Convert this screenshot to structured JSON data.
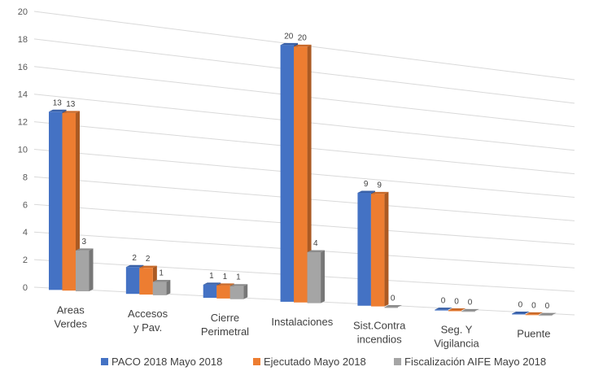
{
  "chart_data": {
    "type": "bar",
    "title": "",
    "xlabel": "",
    "ylabel": "",
    "ylim": [
      0,
      20
    ],
    "yticks": [
      0,
      2,
      4,
      6,
      8,
      10,
      12,
      14,
      16,
      18,
      20
    ],
    "grid": true,
    "legend_position": "bottom",
    "categories": [
      [
        "Areas",
        "Verdes"
      ],
      [
        "Accesos",
        "y Pav."
      ],
      [
        "Cierre",
        "Perimetral"
      ],
      [
        "Instalaciones"
      ],
      [
        "Sist.Contra",
        "incendios"
      ],
      [
        "Seg. Y",
        "Vigilancia"
      ],
      [
        "Puente"
      ]
    ],
    "series": [
      {
        "name": "PACO 2018 Mayo 2018",
        "values": [
          13,
          2,
          1,
          20,
          9,
          0,
          0
        ],
        "color": "#4472C4"
      },
      {
        "name": "Ejecutado Mayo 2018",
        "values": [
          13,
          2,
          1,
          20,
          9,
          0,
          0
        ],
        "color": "#ED7D31"
      },
      {
        "name": "Fiscalización AIFE Mayo 2018",
        "values": [
          3,
          1,
          1,
          4,
          0,
          0,
          0
        ],
        "color": "#A5A5A5"
      }
    ]
  }
}
